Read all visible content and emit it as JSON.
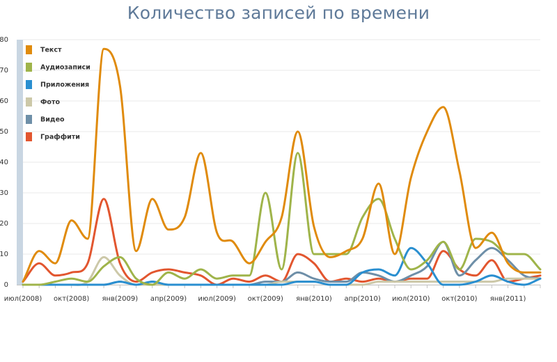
{
  "title": "Количество записей по времени",
  "chart_data": {
    "type": "line",
    "title": "Количество записей по времени",
    "xlabel": "",
    "ylabel": "",
    "ylim": [
      0,
      80
    ],
    "yticks": [
      0,
      10,
      20,
      30,
      40,
      50,
      60,
      70,
      80
    ],
    "grid": true,
    "legend_position": "top-left",
    "x_tick_labels": [
      "июл(2008)",
      "окт(2008)",
      "янв(2009)",
      "апр(2009)",
      "июл(2009)",
      "окт(2009)",
      "янв(2010)",
      "апр(2010)",
      "июл(2010)",
      "окт(2010)",
      "янв(2011)"
    ],
    "x": [
      "2008-07",
      "2008-08",
      "2008-09",
      "2008-10",
      "2008-11",
      "2008-12",
      "2009-01",
      "2009-02",
      "2009-03",
      "2009-04",
      "2009-05",
      "2009-06",
      "2009-07",
      "2009-08",
      "2009-09",
      "2009-10",
      "2009-11",
      "2009-12",
      "2010-01",
      "2010-02",
      "2010-03",
      "2010-04",
      "2010-05",
      "2010-06",
      "2010-07",
      "2010-08",
      "2010-09",
      "2010-10",
      "2010-11",
      "2010-12",
      "2011-01",
      "2011-02",
      "2011-03"
    ],
    "series": [
      {
        "name": "Текст",
        "color": "#e08b0d",
        "values": [
          1,
          11,
          7,
          21,
          15,
          77,
          65,
          11,
          28,
          18,
          22,
          43,
          17,
          14,
          7,
          14,
          22,
          50,
          19,
          9,
          11,
          15,
          33,
          10,
          35,
          50,
          58,
          37,
          12,
          17,
          7,
          4,
          4
        ]
      },
      {
        "name": "Аудиозаписи",
        "color": "#9fb44a",
        "values": [
          0,
          0,
          1,
          2,
          1,
          6,
          9,
          2,
          0,
          4,
          2,
          5,
          2,
          3,
          3,
          30,
          5,
          43,
          10,
          10,
          10,
          22,
          28,
          15,
          5,
          8,
          14,
          5,
          15,
          14,
          10,
          10,
          5
        ]
      },
      {
        "name": "Приложения",
        "color": "#2a8fd0",
        "values": [
          0,
          0,
          0,
          0,
          0,
          0,
          1,
          0,
          1,
          0,
          0,
          0,
          0,
          0,
          0,
          0,
          0,
          1,
          1,
          0,
          0,
          4,
          5,
          3,
          12,
          7,
          0,
          0,
          1,
          3,
          1,
          0,
          2
        ]
      },
      {
        "name": "Фото",
        "color": "#ccc8a8",
        "values": [
          0,
          0,
          0,
          0,
          1,
          9,
          3,
          0,
          0,
          0,
          0,
          0,
          0,
          0,
          0,
          0,
          1,
          1,
          1,
          0,
          0,
          0,
          1,
          1,
          1,
          1,
          1,
          1,
          1,
          1,
          2,
          2,
          2
        ]
      },
      {
        "name": "Видео",
        "color": "#6e8fa8",
        "values": [
          0,
          0,
          0,
          0,
          0,
          0,
          1,
          0,
          1,
          0,
          0,
          0,
          0,
          0,
          0,
          1,
          1,
          4,
          2,
          1,
          1,
          4,
          3,
          1,
          3,
          6,
          14,
          3,
          8,
          12,
          8,
          3,
          2
        ]
      },
      {
        "name": "Граффити",
        "color": "#e2562f",
        "values": [
          1,
          7,
          3,
          4,
          7,
          28,
          7,
          1,
          4,
          5,
          4,
          3,
          0,
          2,
          1,
          3,
          1,
          10,
          7,
          1,
          2,
          1,
          2,
          1,
          2,
          2,
          11,
          5,
          3,
          8,
          1,
          2,
          3
        ]
      }
    ]
  }
}
